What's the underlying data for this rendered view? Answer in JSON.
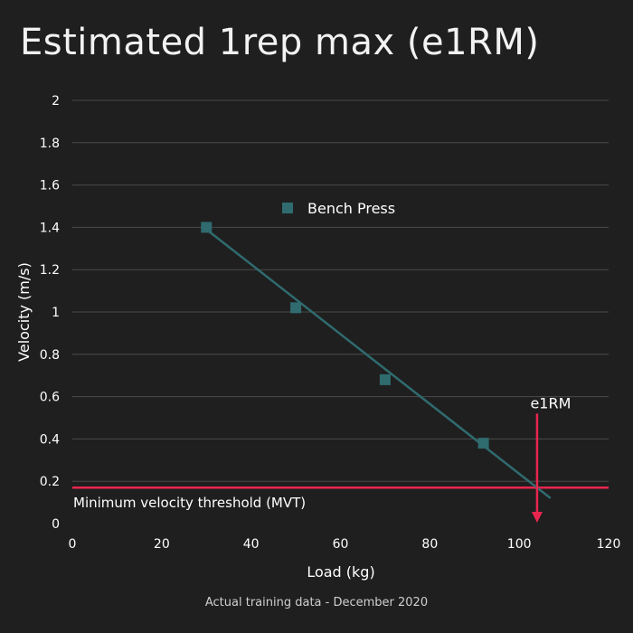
{
  "chart_data": {
    "type": "scatter",
    "title": "Estimated 1rep max (e1RM)",
    "xlabel": "Load (kg)",
    "ylabel": "Velocity (m/s)",
    "xlim": [
      0,
      120
    ],
    "ylim": [
      0,
      2
    ],
    "x_ticks": [
      0,
      20,
      40,
      60,
      80,
      100,
      120
    ],
    "y_ticks": [
      0,
      0.2,
      0.4,
      0.6,
      0.8,
      1,
      1.2,
      1.4,
      1.6,
      1.8,
      2
    ],
    "x_tick_labels": [
      "0",
      "20",
      "40",
      "60",
      "80",
      "100",
      "120"
    ],
    "y_tick_labels": [
      "0",
      "0.2",
      "0.4",
      "0.6",
      "0.8",
      "1",
      "1.2",
      "1.4",
      "1.6",
      "1.8",
      "2"
    ],
    "grid": "horizontal",
    "legend_placement": "top-center",
    "series": [
      {
        "name": "Bench Press",
        "color": "#2f6b6f",
        "marker": "square",
        "x": [
          30,
          50,
          70,
          92
        ],
        "y": [
          1.4,
          1.02,
          0.68,
          0.38
        ]
      }
    ],
    "trendline": {
      "color": "#2f6b6f",
      "x": [
        30,
        107
      ],
      "y": [
        1.39,
        0.12
      ]
    },
    "mvt_line": {
      "label": "Minimum velocity threshold (MVT)",
      "y": 0.17,
      "color": "#e8264d"
    },
    "e1rm_marker": {
      "label": "e1RM",
      "x": 104,
      "y_top": 0.52,
      "color": "#e8264d"
    }
  },
  "footer": {
    "caption": "Actual training data - December 2020"
  },
  "colors": {
    "background": "#1f1f1f",
    "grid": "#4a4a4a",
    "text": "#ffffff"
  }
}
